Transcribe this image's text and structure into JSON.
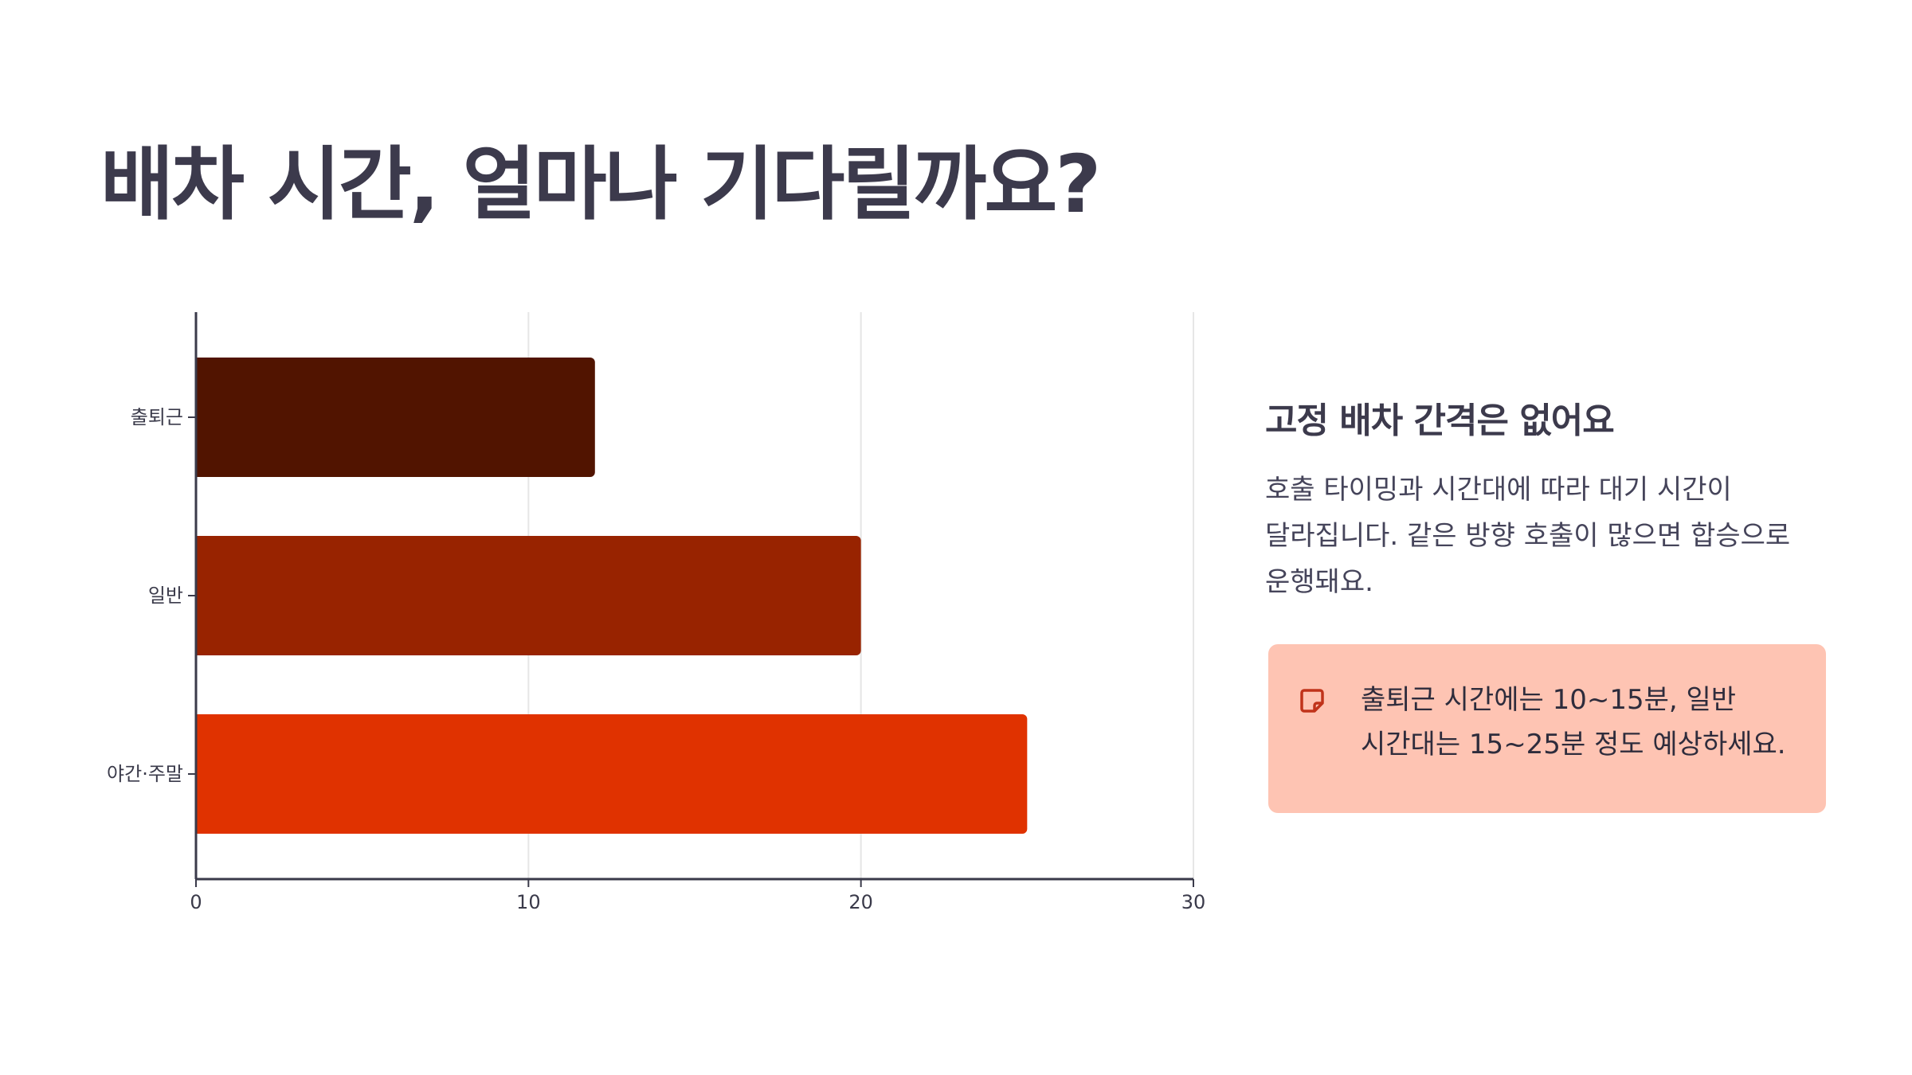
{
  "slide": {
    "title": "배차 시간, 얼마나 기다릴까요?"
  },
  "chart_data": {
    "type": "bar",
    "orientation": "horizontal",
    "categories": [
      "출퇴근",
      "일반",
      "야간·주말"
    ],
    "values": [
      12,
      20,
      25
    ],
    "bar_colors": [
      "#511400",
      "#982300",
      "#e03200"
    ],
    "xlim": [
      0,
      30
    ],
    "xticks": [
      0,
      10,
      20,
      30
    ],
    "grid": true,
    "title": "",
    "xlabel": "",
    "ylabel": ""
  },
  "side_panel": {
    "heading": "고정 배차 간격은 없어요",
    "body": "호출 타이밍과 시간대에 따라 대기 시간이 달라집니다. 같은 방향 호출이 많으면 합승으로 운행돼요."
  },
  "note": {
    "icon": "sticky-note-icon",
    "text": "출퇴근 시간에는 10~15분, 일반 시간대는 15~25분 정도 예상하세요.",
    "background": "#fec4b3",
    "icon_color": "#c0331a"
  },
  "colors": {
    "text_dark": "#3c3a4c",
    "axis": "#3a3a4a",
    "grid": "#e6e6e6"
  }
}
